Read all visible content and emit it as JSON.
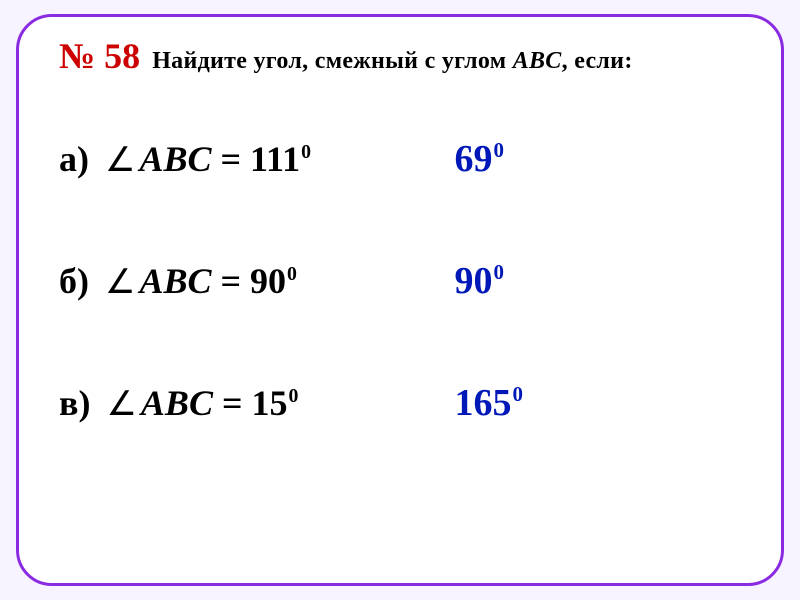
{
  "frame": {
    "border_color": "#8a2be2",
    "background": "#ffffff",
    "border_radius": 36,
    "border_width": 3
  },
  "page_background": "#f8f4ff",
  "header": {
    "problem_number": "№ 58",
    "problem_number_color": "#cc0000",
    "problem_number_fontsize": 36,
    "question_prefix": "Найдите угол, смежный с углом ",
    "question_var": "ABC",
    "question_suffix": ", если:",
    "question_fontsize": 24,
    "question_color": "#000000"
  },
  "items": [
    {
      "letter": "а)",
      "var": "ABC",
      "eq": " = 111",
      "deg": "0",
      "answer": "69",
      "answer_deg": "0"
    },
    {
      "letter": "б)",
      "var": "ABC",
      "eq": " = 90",
      "deg": "0",
      "answer": "90",
      "answer_deg": "0"
    },
    {
      "letter": "в)",
      "var": "ABC",
      "eq": " = 15",
      "deg": "0",
      "answer": "165",
      "answer_deg": "0"
    }
  ],
  "styles": {
    "item_fontsize": 36,
    "item_color": "#000000",
    "answer_color": "#0018b8",
    "answer_fontsize": 38,
    "angle_symbol": "∠",
    "row_gap": 78
  }
}
